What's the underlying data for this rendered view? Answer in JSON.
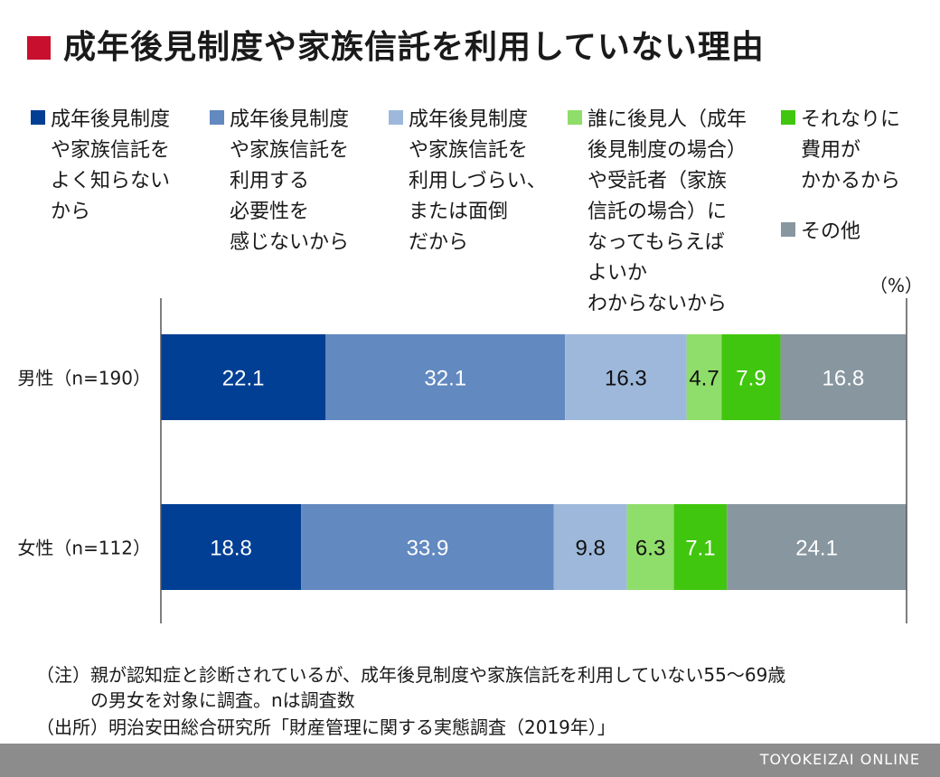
{
  "title": "成年後見制度や家族信託を利用していない理由",
  "unit_label": "（%）",
  "legend": [
    {
      "label": "成年後見制度\nや家族信託を\nよく知らない\nから",
      "color": "#003f94"
    },
    {
      "label": "成年後見制度\nや家族信託を\n利用する\n必要性を\n感じないから",
      "color": "#6289c0"
    },
    {
      "label": "成年後見制度\nや家族信託を\n利用しづらい、\nまたは面倒\nだから",
      "color": "#9db8da"
    },
    {
      "label": "誰に後見人（成年\n後見制度の場合）\nや受託者（家族\n信託の場合）に\nなってもらえば\nよいか\nわからないから",
      "color": "#8fdd6a"
    },
    {
      "label": "それなりに\n費用が\nかかるから",
      "color": "#40c60e"
    },
    {
      "label": "その他",
      "color": "#8896a0"
    }
  ],
  "chart_data": {
    "type": "bar",
    "orientation": "horizontal",
    "stacked": true,
    "unit": "%",
    "categories": [
      "男性（n=190）",
      "女性（n=112）"
    ],
    "series": [
      {
        "name": "成年後見制度や家族信託をよく知らないから",
        "values": [
          22.1,
          18.8
        ],
        "color": "#003f94",
        "label_color": "#ffffff"
      },
      {
        "name": "成年後見制度や家族信託を利用する必要性を感じないから",
        "values": [
          32.1,
          33.9
        ],
        "color": "#6289c0",
        "label_color": "#ffffff"
      },
      {
        "name": "成年後見制度や家族信託を利用しづらい、または面倒だから",
        "values": [
          16.3,
          9.8
        ],
        "color": "#9db8da",
        "label_color": "#111111"
      },
      {
        "name": "誰に後見人（成年後見制度の場合）や受託者（家族信託の場合）になってもらえばよいかわからないから",
        "values": [
          4.7,
          6.3
        ],
        "color": "#8fdd6a",
        "label_color": "#111111"
      },
      {
        "name": "それなりに費用がかかるから",
        "values": [
          7.9,
          7.1
        ],
        "color": "#40c60e",
        "label_color": "#ffffff"
      },
      {
        "name": "その他",
        "values": [
          16.8,
          24.1
        ],
        "color": "#8896a0",
        "label_color": "#ffffff"
      }
    ],
    "xlim": [
      0,
      100
    ]
  },
  "notes": [
    "（注）親が認知症と診断されているが、成年後見制度や家族信託を利用していない55〜69歳",
    "　　　の男女を対象に調査。nは調査数",
    "（出所）明治安田総合研究所「財産管理に関する実態調査（2019年）」"
  ],
  "brand": "TOYOKEIZAI ONLINE"
}
